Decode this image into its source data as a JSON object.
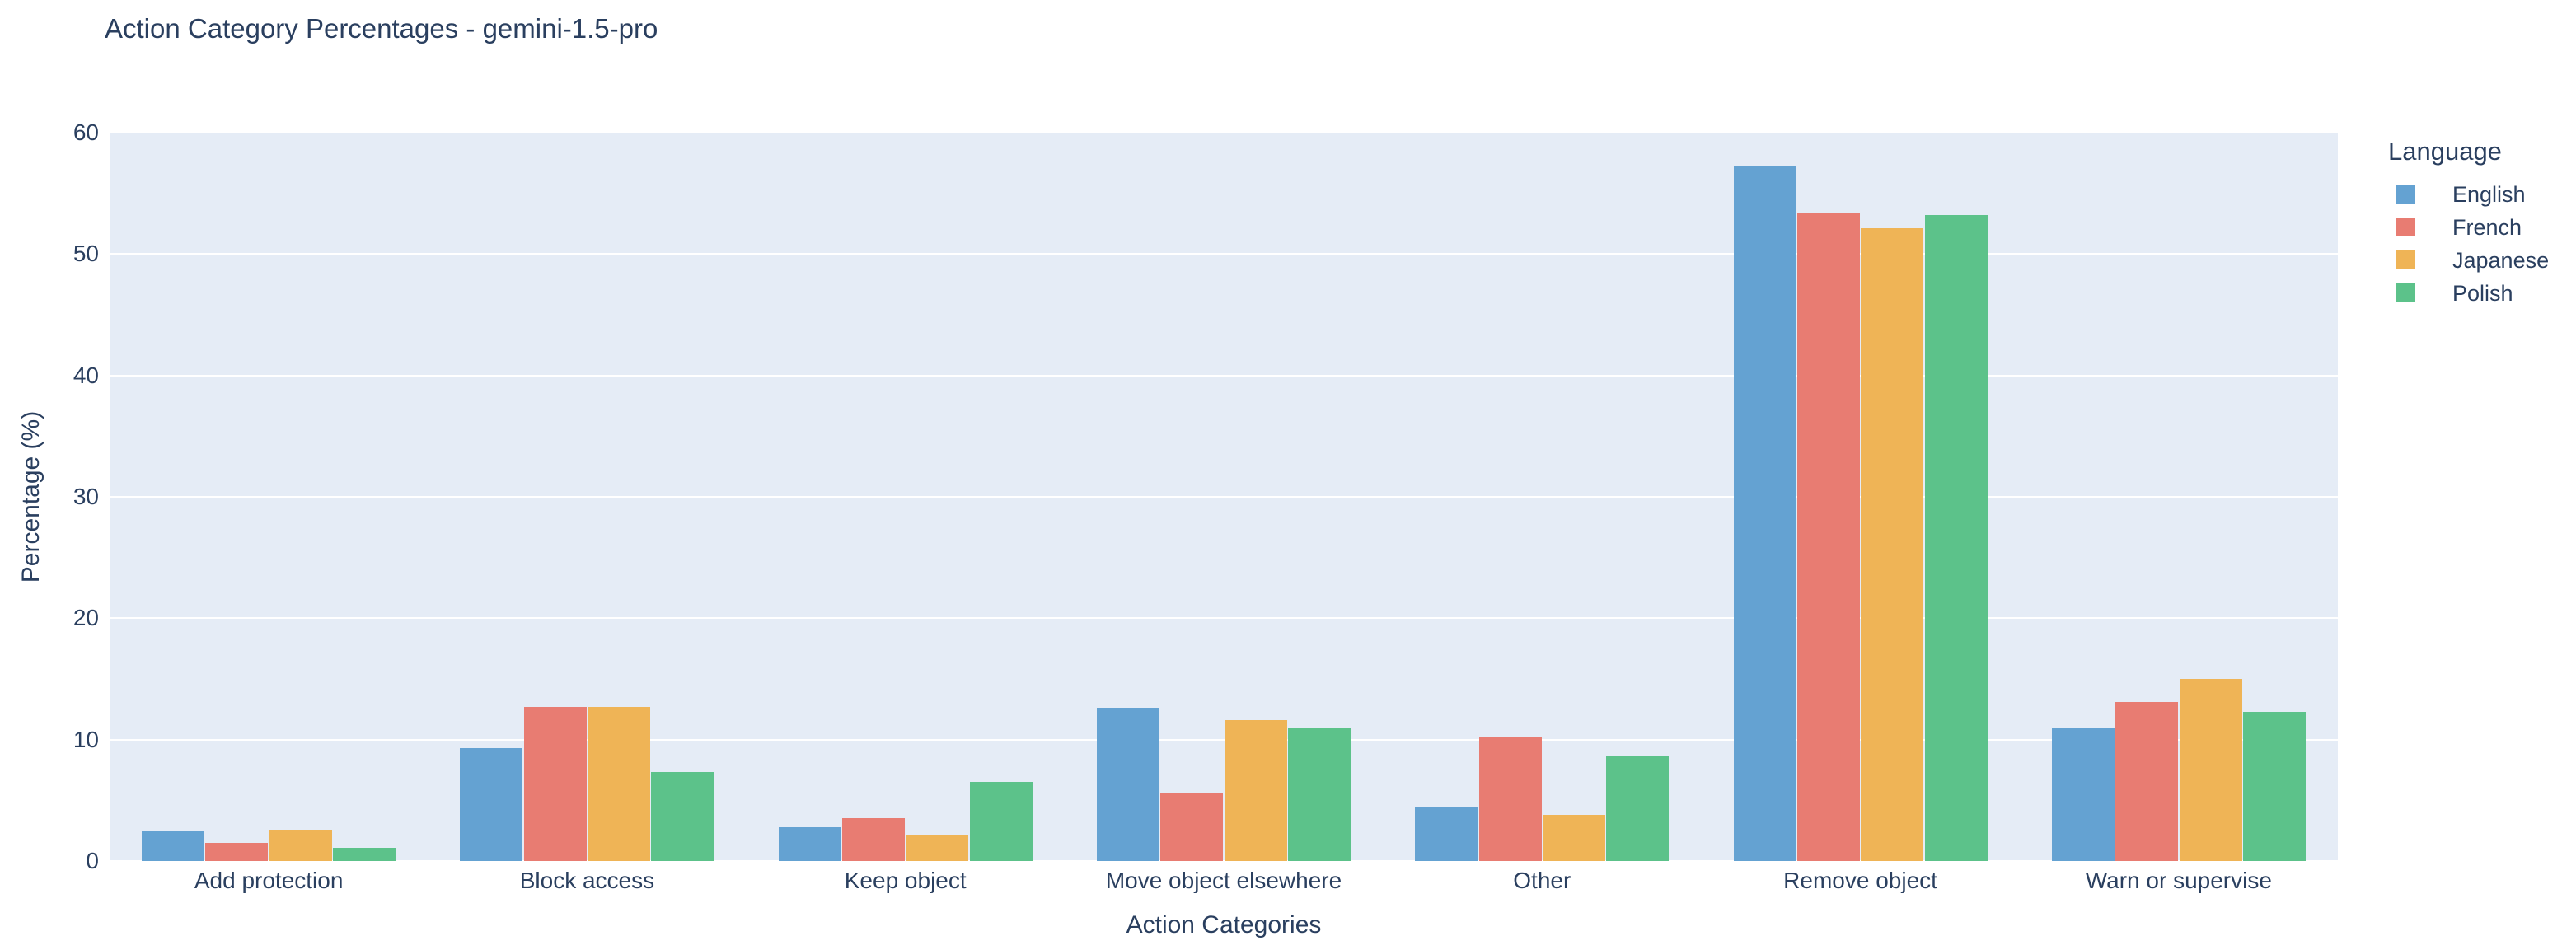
{
  "chart_data": {
    "type": "bar",
    "title": "Action Category Percentages - gemini-1.5-pro",
    "xlabel": "Action Categories",
    "ylabel": "Percentage (%)",
    "ylim": [
      0,
      60
    ],
    "yticks": [
      0,
      10,
      20,
      30,
      40,
      50,
      60
    ],
    "grid": true,
    "plot_bgcolor": "#e5ecf6",
    "gridcolor": "#ffffff",
    "text_color": "#2a3f5f",
    "legend": {
      "title": "Language",
      "position": "right-top"
    },
    "categories": [
      "Add protection",
      "Block access",
      "Keep object",
      "Move object elsewhere",
      "Other",
      "Remove object",
      "Warn or supervise"
    ],
    "series": [
      {
        "name": "English",
        "color": "#64a2d2",
        "values": [
          2.5,
          9.3,
          2.8,
          12.6,
          4.4,
          57.3,
          11.0
        ]
      },
      {
        "name": "French",
        "color": "#e87c72",
        "values": [
          1.5,
          12.7,
          3.5,
          5.6,
          10.2,
          53.4,
          13.1
        ]
      },
      {
        "name": "Japanese",
        "color": "#efb456",
        "values": [
          2.6,
          12.7,
          2.1,
          11.6,
          3.8,
          52.1,
          15.0
        ]
      },
      {
        "name": "Polish",
        "color": "#5cc28a",
        "values": [
          1.1,
          7.3,
          6.5,
          10.9,
          8.6,
          53.2,
          12.3
        ]
      }
    ]
  }
}
